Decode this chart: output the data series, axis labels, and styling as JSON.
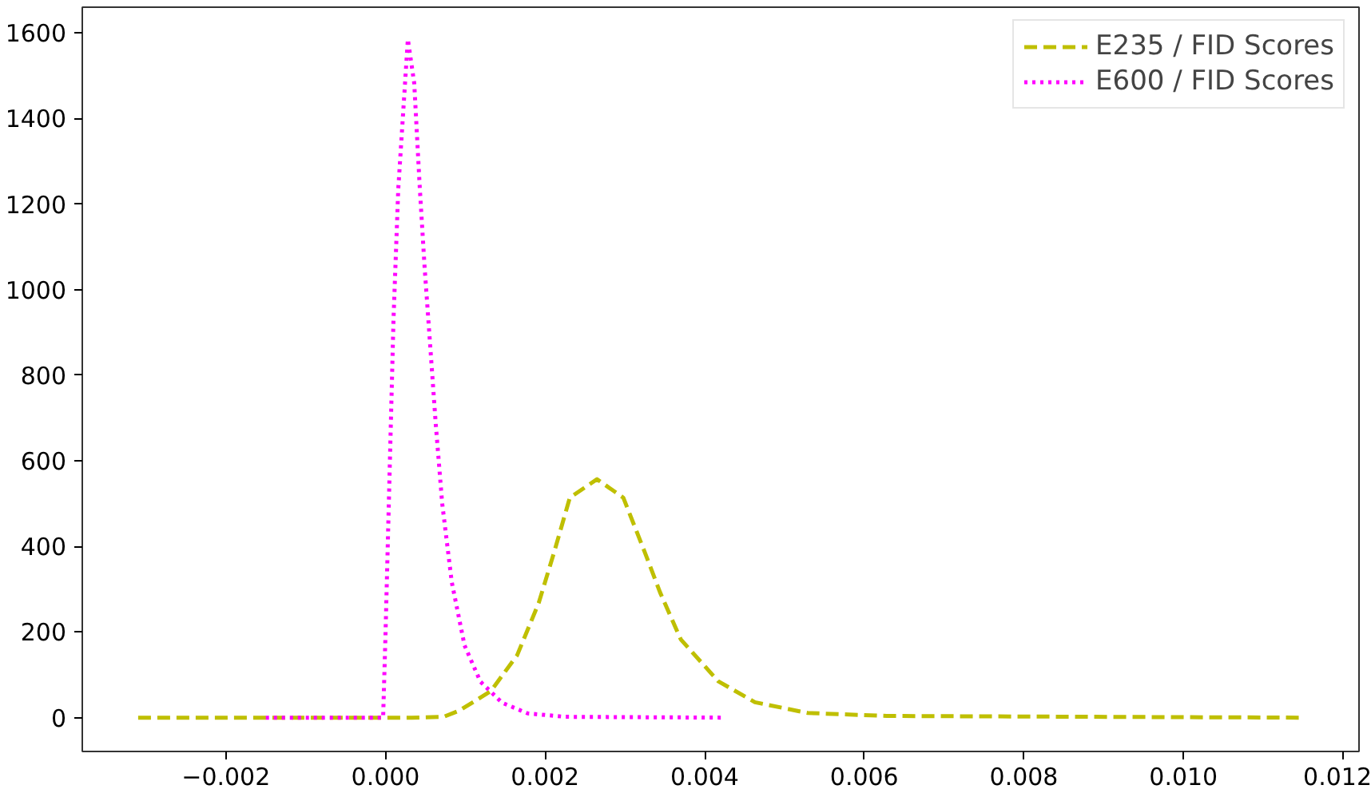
{
  "chart_data": {
    "type": "line",
    "xlim": [
      -0.0038,
      0.0122
    ],
    "ylim": [
      -79,
      1660
    ],
    "xticks": [
      {
        "value": -0.002,
        "label": "−0.002"
      },
      {
        "value": 0.0,
        "label": "0.000"
      },
      {
        "value": 0.002,
        "label": "0.002"
      },
      {
        "value": 0.004,
        "label": "0.004"
      },
      {
        "value": 0.006,
        "label": "0.006"
      },
      {
        "value": 0.008,
        "label": "0.008"
      },
      {
        "value": 0.01,
        "label": "0.010"
      },
      {
        "value": 0.012,
        "label": "0.012"
      }
    ],
    "yticks": [
      0,
      200,
      400,
      600,
      800,
      1000,
      1200,
      1400,
      1600
    ],
    "grid": false,
    "legend": "top right",
    "series": [
      {
        "name": "E235 / FID Scores",
        "color": "#bfbf00",
        "line_style": "dashed",
        "x": [
          -0.0031,
          0.0,
          0.00033,
          0.00073,
          0.00093,
          0.00132,
          0.00165,
          0.00192,
          0.00212,
          0.00231,
          0.00265,
          0.00298,
          0.00324,
          0.00344,
          0.0037,
          0.00417,
          0.00463,
          0.00529,
          0.00628,
          0.0115
        ],
        "values": [
          0,
          0,
          0,
          2,
          17,
          62,
          146,
          268,
          391,
          514,
          557,
          514,
          391,
          293,
          183,
          85,
          36,
          11,
          4,
          0
        ]
      },
      {
        "name": "E600 / FID Scores",
        "color": "#ff00ff",
        "line_style": "dotted",
        "x": [
          -0.0015,
          -3e-05,
          0.0,
          5e-05,
          0.0001,
          0.00016,
          0.00028,
          0.00036,
          0.00043,
          0.00049,
          0.00056,
          0.00063,
          0.00071,
          0.00083,
          0.00099,
          0.00119,
          0.00146,
          0.00178,
          0.00225,
          0.00425
        ],
        "values": [
          0,
          0,
          195,
          563,
          930,
          1236,
          1585,
          1482,
          1236,
          1052,
          869,
          685,
          501,
          317,
          169,
          84,
          35,
          10,
          2,
          0
        ]
      }
    ]
  }
}
